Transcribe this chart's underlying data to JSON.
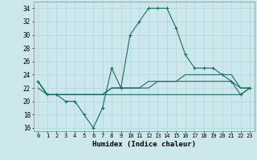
{
  "xlabel": "Humidex (Indice chaleur)",
  "background_color": "#cce8ed",
  "grid_color": "#b0d8e0",
  "line_color": "#1a6b62",
  "xlim": [
    -0.5,
    23.5
  ],
  "ylim": [
    15.5,
    35.0
  ],
  "xticks": [
    0,
    1,
    2,
    3,
    4,
    5,
    6,
    7,
    8,
    9,
    10,
    11,
    12,
    13,
    14,
    15,
    16,
    17,
    18,
    19,
    20,
    21,
    22,
    23
  ],
  "yticks": [
    16,
    18,
    20,
    22,
    24,
    26,
    28,
    30,
    32,
    34
  ],
  "line1_x": [
    0,
    1,
    2,
    3,
    4,
    5,
    6,
    7,
    8,
    9,
    10,
    11,
    12,
    13,
    14,
    15,
    16,
    17,
    18,
    19,
    20,
    21,
    22,
    23
  ],
  "line1_y": [
    23,
    21,
    21,
    20,
    20,
    18,
    16,
    19,
    25,
    22,
    30,
    32,
    34,
    34,
    34,
    31,
    27,
    25,
    25,
    25,
    24,
    23,
    21,
    22
  ],
  "line2_x": [
    0,
    1,
    2,
    3,
    4,
    5,
    6,
    7,
    8,
    9,
    10,
    11,
    12,
    13,
    14,
    15,
    16,
    17,
    18,
    19,
    20,
    21,
    22,
    23
  ],
  "line2_y": [
    23,
    21,
    21,
    21,
    21,
    21,
    21,
    21,
    22,
    22,
    22,
    22,
    23,
    23,
    23,
    23,
    24,
    24,
    24,
    24,
    24,
    24,
    22,
    22
  ],
  "line3_x": [
    0,
    1,
    2,
    3,
    4,
    5,
    6,
    7,
    8,
    9,
    10,
    11,
    12,
    13,
    14,
    15,
    16,
    17,
    18,
    19,
    20,
    21,
    22,
    23
  ],
  "line3_y": [
    23,
    21,
    21,
    21,
    21,
    21,
    21,
    21,
    22,
    22,
    22,
    22,
    22,
    23,
    23,
    23,
    23,
    23,
    23,
    23,
    23,
    23,
    22,
    22
  ],
  "line4_x": [
    0,
    1,
    2,
    3,
    4,
    5,
    6,
    7,
    8,
    9,
    10,
    11,
    12,
    13,
    14,
    15,
    16,
    17,
    18,
    19,
    20,
    21,
    22,
    23
  ],
  "line4_y": [
    22,
    21,
    21,
    21,
    21,
    21,
    21,
    21,
    21,
    21,
    21,
    21,
    21,
    21,
    21,
    21,
    21,
    21,
    21,
    21,
    21,
    21,
    21,
    22
  ]
}
